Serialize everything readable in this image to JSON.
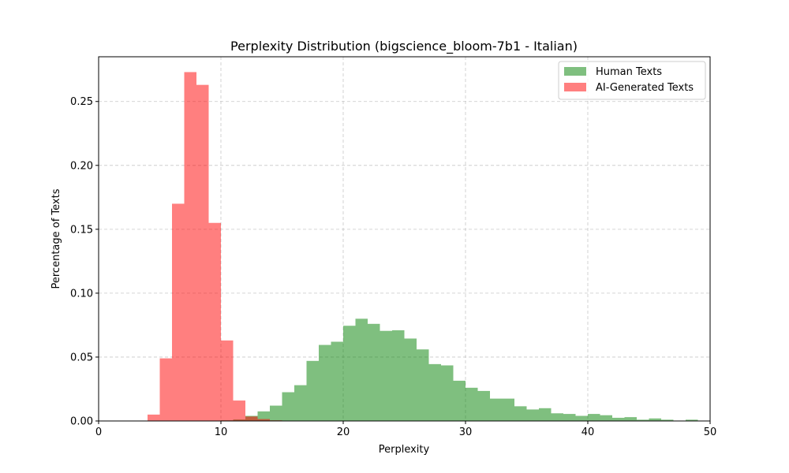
{
  "chart_data": {
    "type": "bar",
    "title": "Perplexity Distribution (bigscience_bloom-7b1 - Italian)",
    "xlabel": "Perplexity",
    "ylabel": "Percentage of Texts",
    "xlim": [
      0,
      50
    ],
    "ylim": [
      0,
      0.285
    ],
    "xticks": [
      "0",
      "10",
      "20",
      "30",
      "40",
      "50"
    ],
    "yticks": [
      "0.00",
      "0.05",
      "0.10",
      "0.15",
      "0.20",
      "0.25"
    ],
    "grid": true,
    "legend_position": "top-right",
    "series": [
      {
        "name": "Human Texts",
        "color": "#008000",
        "opacity": 0.5,
        "bin_width": 1,
        "x": [
          10,
          11,
          12,
          13,
          14,
          15,
          16,
          17,
          18,
          19,
          20,
          21,
          22,
          23,
          24,
          25,
          26,
          27,
          28,
          29,
          30,
          31,
          32,
          33,
          34,
          35,
          36,
          37,
          38,
          39,
          40,
          41,
          42,
          43,
          44,
          45,
          46,
          47,
          48
        ],
        "values": [
          0.0005,
          0.0012,
          0.004,
          0.0075,
          0.012,
          0.0225,
          0.028,
          0.047,
          0.0595,
          0.062,
          0.0745,
          0.08,
          0.076,
          0.0705,
          0.071,
          0.0645,
          0.056,
          0.0445,
          0.0435,
          0.0315,
          0.026,
          0.0235,
          0.0175,
          0.0175,
          0.0115,
          0.009,
          0.01,
          0.006,
          0.0055,
          0.004,
          0.0055,
          0.0045,
          0.0025,
          0.003,
          0.001,
          0.002,
          0.001,
          0.0003,
          0.001
        ]
      },
      {
        "name": "AI-Generated Texts",
        "color": "#ff0000",
        "opacity": 0.5,
        "bin_width": 1,
        "x": [
          4,
          5,
          6,
          7,
          8,
          9,
          10,
          11,
          12,
          13,
          14
        ],
        "values": [
          0.005,
          0.049,
          0.17,
          0.273,
          0.263,
          0.155,
          0.063,
          0.016,
          0.0035,
          0.0015,
          0.0005
        ]
      }
    ]
  }
}
